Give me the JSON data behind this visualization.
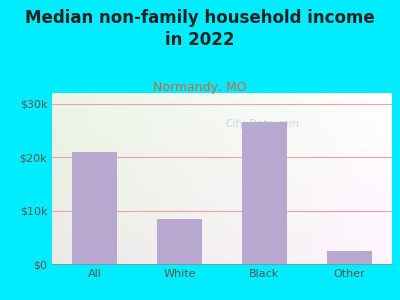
{
  "title": "Median non-family household income\nin 2022",
  "subtitle": "Normandy, MO",
  "categories": [
    "All",
    "White",
    "Black",
    "Other"
  ],
  "values": [
    21000,
    8500,
    26500,
    2500
  ],
  "bar_color": "#b8a8d0",
  "title_fontsize": 12,
  "subtitle_fontsize": 9,
  "subtitle_color": "#cc6644",
  "title_color": "#222222",
  "tick_color": "#555555",
  "xtick_fontsize": 8,
  "ytick_fontsize": 8,
  "yticks": [
    0,
    10000,
    20000,
    30000
  ],
  "ytick_labels": [
    "$0",
    "$10k",
    "$20k",
    "$30k"
  ],
  "ylim": [
    0,
    32000
  ],
  "bg_outer": "#00ecff",
  "grid_color": "#f0a0a8",
  "grid_linewidth": 0.8,
  "watermark": "City-Data.com",
  "watermark_color": "#aabbc8",
  "watermark_alpha": 0.55
}
